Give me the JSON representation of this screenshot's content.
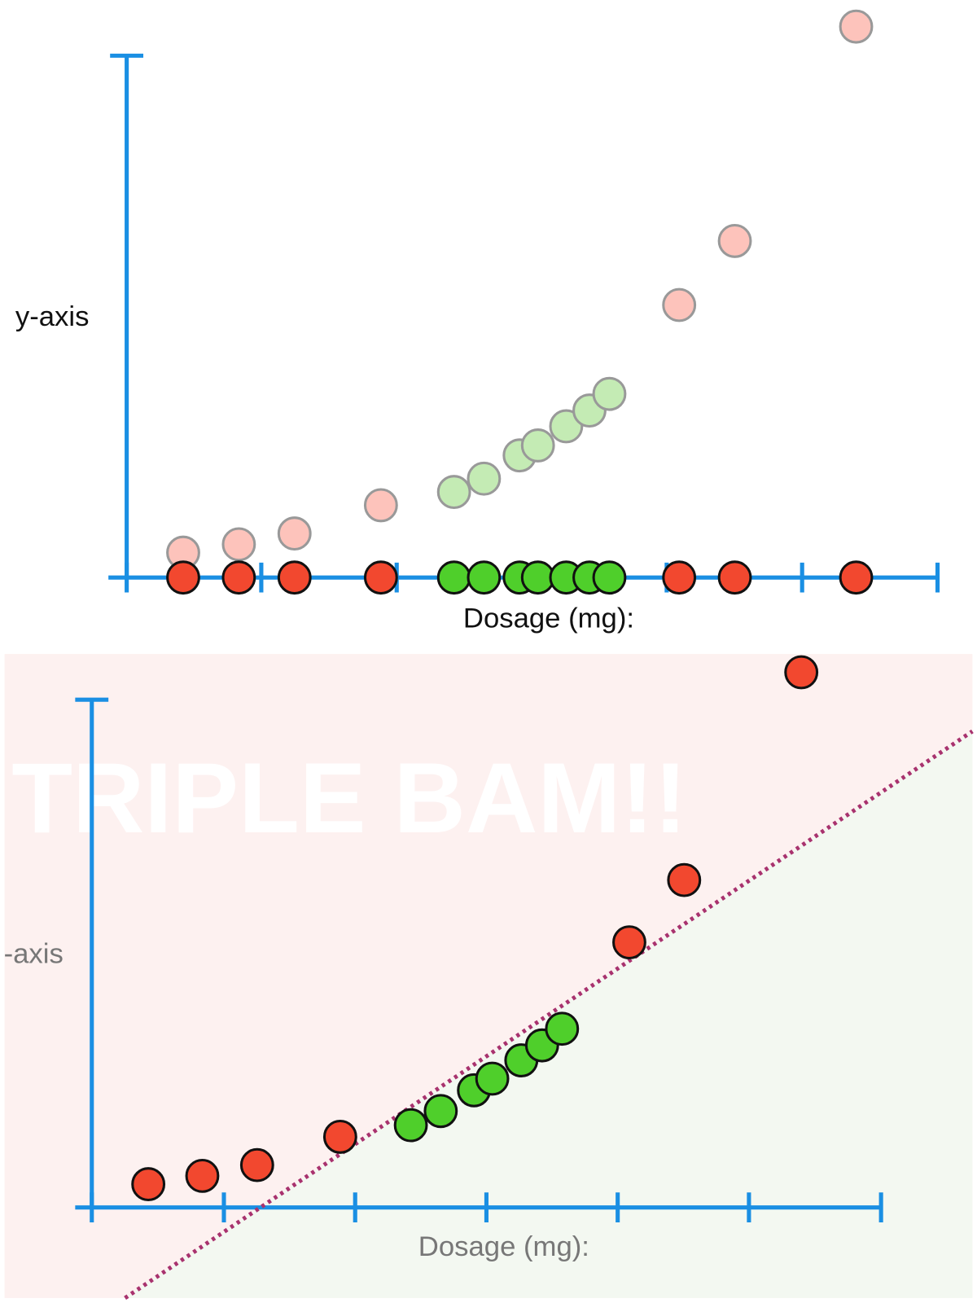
{
  "top_panel": {
    "y_axis_label": "y-axis",
    "x_axis_label": "Dosage (mg):"
  },
  "bottom_panel": {
    "y_axis_label": "-axis",
    "x_axis_label": "Dosage (mg):",
    "watermark": "TRIPLE BAM!!"
  }
}
